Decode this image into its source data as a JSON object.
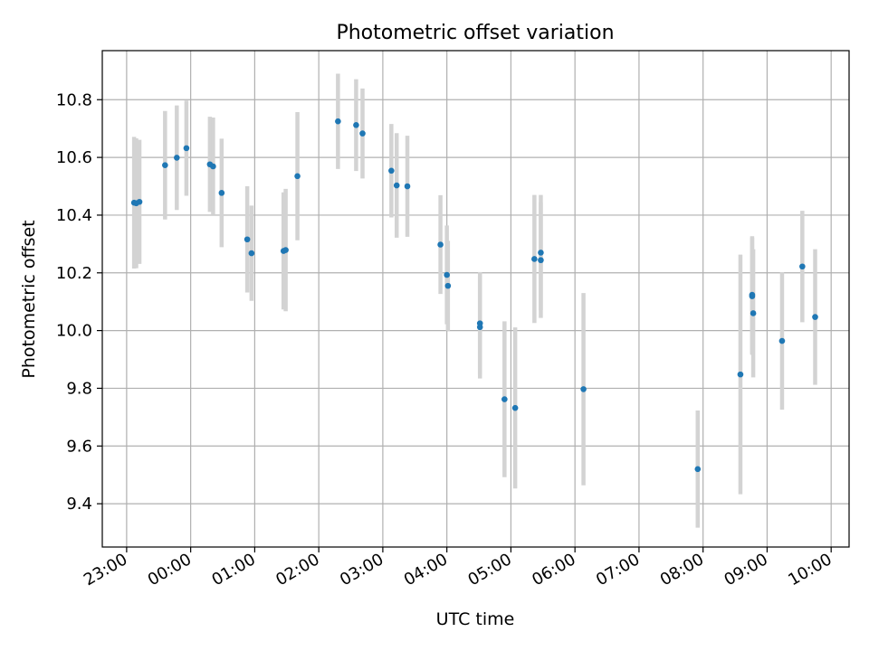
{
  "chart_data": {
    "type": "scatter",
    "title": "Photometric offset variation",
    "xlabel": "UTC time",
    "ylabel": "Photometric offset",
    "x_ticks": [
      "23:00",
      "00:00",
      "01:00",
      "02:00",
      "03:00",
      "04:00",
      "05:00",
      "06:00",
      "07:00",
      "08:00",
      "09:00",
      "10:00"
    ],
    "y_ticks": [
      "9.4",
      "9.6",
      "9.8",
      "10.0",
      "10.2",
      "10.4",
      "10.6",
      "10.8"
    ],
    "xlim_hours_after_2300": [
      -0.38,
      11.28
    ],
    "ylim": [
      9.25,
      10.97
    ],
    "grid": true,
    "marker_color": "#1f77b4",
    "errorbar_color": "#d3d3d3",
    "points": [
      {
        "t": "23:07",
        "y": 10.443,
        "err": 0.228
      },
      {
        "t": "23:09",
        "y": 10.441,
        "err": 0.225
      },
      {
        "t": "23:12",
        "y": 10.446,
        "err": 0.215
      },
      {
        "t": "23:36",
        "y": 10.573,
        "err": 0.188
      },
      {
        "t": "23:47",
        "y": 10.599,
        "err": 0.181
      },
      {
        "t": "23:56",
        "y": 10.632,
        "err": 0.165
      },
      {
        "t": "00:18",
        "y": 10.576,
        "err": 0.165
      },
      {
        "t": "00:21",
        "y": 10.569,
        "err": 0.169
      },
      {
        "t": "00:29",
        "y": 10.477,
        "err": 0.188
      },
      {
        "t": "00:53",
        "y": 10.316,
        "err": 0.184
      },
      {
        "t": "00:57",
        "y": 10.268,
        "err": 0.165
      },
      {
        "t": "01:27",
        "y": 10.276,
        "err": 0.203
      },
      {
        "t": "01:29",
        "y": 10.279,
        "err": 0.212
      },
      {
        "t": "01:40",
        "y": 10.535,
        "err": 0.222
      },
      {
        "t": "02:18",
        "y": 10.725,
        "err": 0.165
      },
      {
        "t": "02:35",
        "y": 10.712,
        "err": 0.159
      },
      {
        "t": "02:41",
        "y": 10.683,
        "err": 0.156
      },
      {
        "t": "03:08",
        "y": 10.554,
        "err": 0.162
      },
      {
        "t": "03:13",
        "y": 10.503,
        "err": 0.181
      },
      {
        "t": "03:23",
        "y": 10.5,
        "err": 0.175
      },
      {
        "t": "03:54",
        "y": 10.298,
        "err": 0.171
      },
      {
        "t": "04:00",
        "y": 10.193,
        "err": 0.171
      },
      {
        "t": "04:01",
        "y": 10.155,
        "err": 0.156
      },
      {
        "t": "04:31",
        "y": 10.025,
        "err": 0.178
      },
      {
        "t": "04:31",
        "y": 10.012,
        "err": 0.178
      },
      {
        "t": "04:54",
        "y": 9.762,
        "err": 0.27
      },
      {
        "t": "05:04",
        "y": 9.732,
        "err": 0.279
      },
      {
        "t": "05:22",
        "y": 10.248,
        "err": 0.222
      },
      {
        "t": "05:28",
        "y": 10.27,
        "err": 0.2
      },
      {
        "t": "05:28",
        "y": 10.244,
        "err": 0.2
      },
      {
        "t": "06:08",
        "y": 9.797,
        "err": 0.333
      },
      {
        "t": "07:55",
        "y": 9.52,
        "err": 0.203
      },
      {
        "t": "08:35",
        "y": 9.848,
        "err": 0.415
      },
      {
        "t": "08:46",
        "y": 10.124,
        "err": 0.203
      },
      {
        "t": "08:46",
        "y": 10.119,
        "err": 0.203
      },
      {
        "t": "08:47",
        "y": 10.06,
        "err": 0.222
      },
      {
        "t": "09:14",
        "y": 9.964,
        "err": 0.238
      },
      {
        "t": "09:33",
        "y": 10.222,
        "err": 0.193
      },
      {
        "t": "09:45",
        "y": 10.047,
        "err": 0.235
      }
    ]
  }
}
